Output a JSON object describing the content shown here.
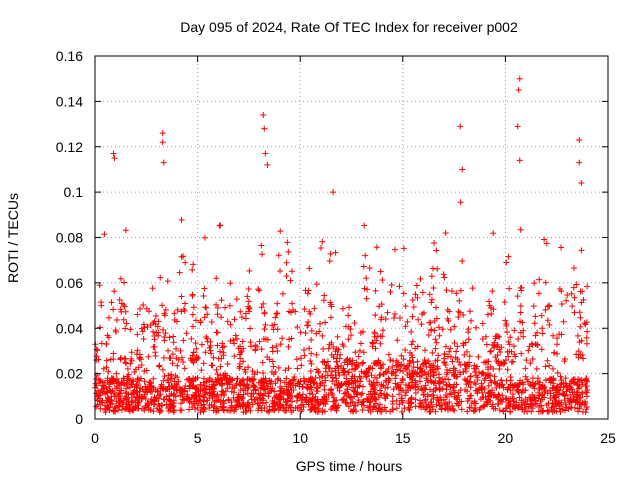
{
  "chart_data": {
    "type": "scatter",
    "title": "Day 095 of 2024, Rate Of TEC Index for receiver p002",
    "xlabel": "GPS time / hours",
    "ylabel": "ROTI / TECUs",
    "xlim": [
      0,
      25
    ],
    "ylim": [
      0,
      0.16
    ],
    "xticks": [
      "0",
      "5",
      "10",
      "15",
      "20",
      "25"
    ],
    "yticks": [
      "0",
      "0.02",
      "0.04",
      "0.06",
      "0.08",
      "0.1",
      "0.12",
      "0.14",
      "0.16"
    ],
    "grid": true,
    "marker": "plus",
    "color": "#ff0000",
    "x_range_of_points": [
      0,
      24
    ],
    "notable_points": [
      {
        "x": 0.9,
        "y": 0.117
      },
      {
        "x": 0.95,
        "y": 0.115
      },
      {
        "x": 3.3,
        "y": 0.126
      },
      {
        "x": 3.3,
        "y": 0.122
      },
      {
        "x": 3.35,
        "y": 0.113
      },
      {
        "x": 8.2,
        "y": 0.134
      },
      {
        "x": 8.25,
        "y": 0.128
      },
      {
        "x": 8.3,
        "y": 0.117
      },
      {
        "x": 8.4,
        "y": 0.112
      },
      {
        "x": 11.6,
        "y": 0.1
      },
      {
        "x": 17.8,
        "y": 0.129
      },
      {
        "x": 17.9,
        "y": 0.11
      },
      {
        "x": 20.7,
        "y": 0.15
      },
      {
        "x": 20.65,
        "y": 0.145
      },
      {
        "x": 20.6,
        "y": 0.129
      },
      {
        "x": 20.7,
        "y": 0.114
      },
      {
        "x": 23.6,
        "y": 0.123
      },
      {
        "x": 23.6,
        "y": 0.113
      },
      {
        "x": 23.7,
        "y": 0.104
      }
    ]
  }
}
